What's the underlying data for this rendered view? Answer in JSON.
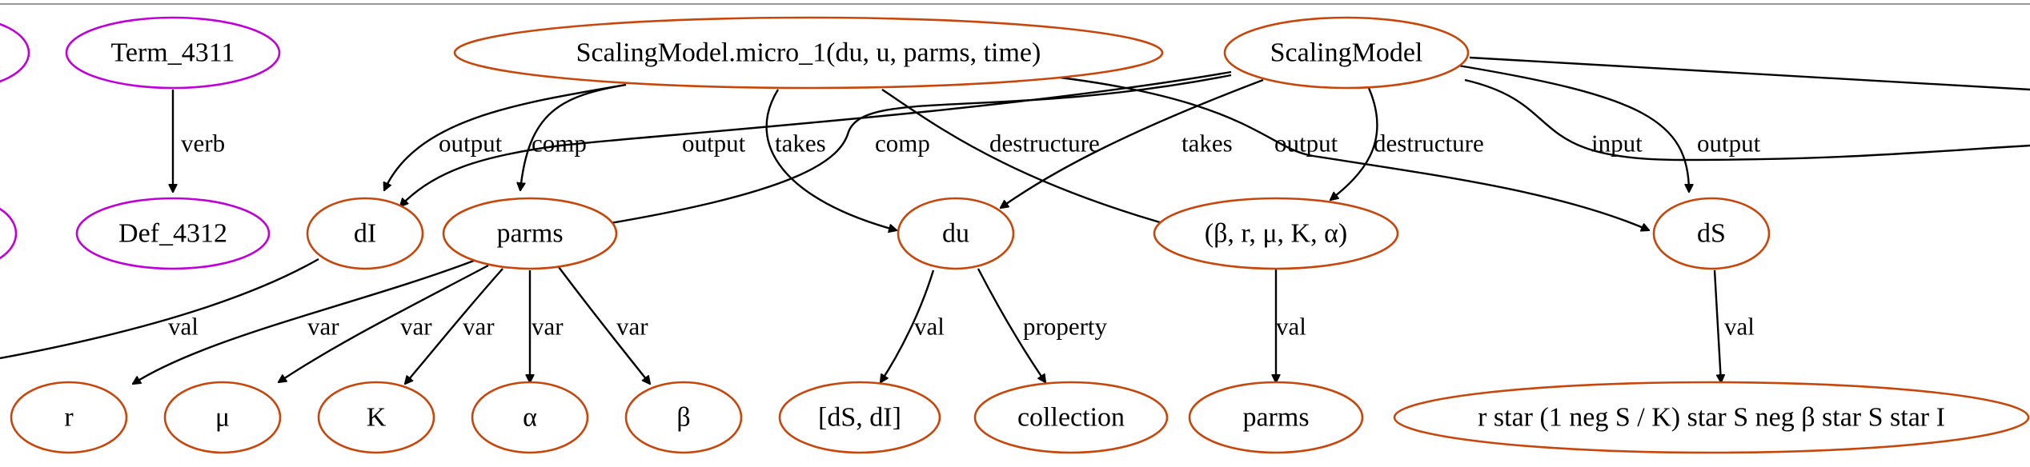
{
  "colors": {
    "purple": "#c000d8",
    "orange": "#c8460a",
    "edge": "#000000"
  },
  "nodes": {
    "term_4311": "Term_4311",
    "def_4312": "Def_4312",
    "micro": "ScalingModel.micro_1(du, u, parms, time)",
    "scalingmodel": "ScalingModel",
    "dI": "dI",
    "parms": "parms",
    "du": "du",
    "tuple": "(β, r, μ, K, α)",
    "dS": "dS",
    "r": "r",
    "mu": "μ",
    "K": "K",
    "alpha": "α",
    "beta": "β",
    "dS_dI": "[dS, dI]",
    "collection": "collection",
    "parms2": "parms",
    "expr": "r star (1 neg S / K) star S neg β star S star I"
  },
  "edges": {
    "verb": "verb",
    "output": "output",
    "comp": "comp",
    "takes": "takes",
    "destructure": "destructure",
    "input": "input",
    "val": "val",
    "var": "var",
    "property": "property"
  }
}
